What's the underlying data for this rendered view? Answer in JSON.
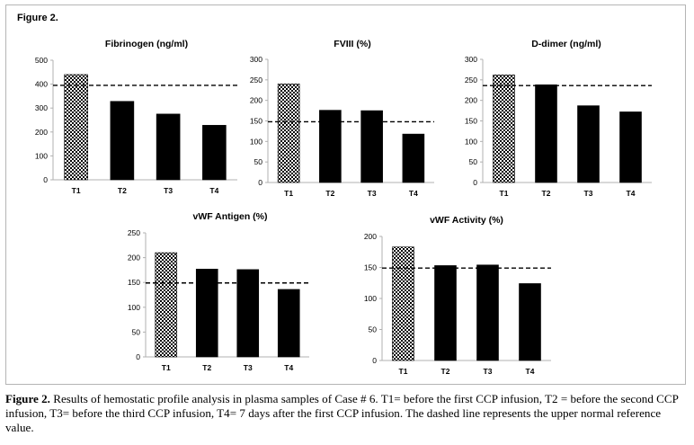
{
  "figure_label": "Figure 2.",
  "caption": {
    "bold": "Figure 2.",
    "text": " Results of hemostatic profile analysis in plasma samples of Case # 6. T1= before the first CCP infusion, T2 = before the second CCP infusion, T3= before the third CCP infusion, T4= 7 days after the first CCP infusion. The dashed line represents the upper normal reference value."
  },
  "colors": {
    "bar": "#000000",
    "checker": "#000000",
    "background": "#ffffff",
    "reference_line": "#000000"
  },
  "chart_data": [
    {
      "type": "bar",
      "title": "Fibrinogen (ng/ml)",
      "categories": [
        "T1",
        "T2",
        "T3",
        "T4"
      ],
      "values": [
        440,
        328,
        275,
        228
      ],
      "ylim": [
        0,
        500
      ],
      "yticks": [
        0,
        100,
        200,
        300,
        400,
        500
      ],
      "reference_line": 395,
      "first_bar_pattern": "checkered"
    },
    {
      "type": "bar",
      "title": "FVIII (%)",
      "categories": [
        "T1",
        "T2",
        "T3",
        "T4"
      ],
      "values": [
        240,
        176,
        175,
        118
      ],
      "ylim": [
        0,
        300
      ],
      "yticks": [
        0,
        50,
        100,
        150,
        200,
        250,
        300
      ],
      "reference_line": 148,
      "first_bar_pattern": "checkered"
    },
    {
      "type": "bar",
      "title": "D-dimer (ng/ml)",
      "categories": [
        "T1",
        "T2",
        "T3",
        "T4"
      ],
      "values": [
        262,
        238,
        187,
        172
      ],
      "ylim": [
        0,
        300
      ],
      "yticks": [
        0,
        50,
        100,
        150,
        200,
        250,
        300
      ],
      "reference_line": 236,
      "first_bar_pattern": "checkered"
    },
    {
      "type": "bar",
      "title": "vWF Antigen (%)",
      "categories": [
        "T1",
        "T2",
        "T3",
        "T4"
      ],
      "values": [
        210,
        177,
        176,
        136
      ],
      "ylim": [
        0,
        250
      ],
      "yticks": [
        0,
        50,
        100,
        150,
        200,
        250
      ],
      "reference_line": 149,
      "first_bar_pattern": "checkered"
    },
    {
      "type": "bar",
      "title": "vWF Activity (%)",
      "categories": [
        "T1",
        "T2",
        "T3",
        "T4"
      ],
      "values": [
        183,
        153,
        154,
        124
      ],
      "ylim": [
        0,
        200
      ],
      "yticks": [
        0,
        50,
        100,
        150,
        200
      ],
      "reference_line": 149,
      "first_bar_pattern": "checkered"
    }
  ]
}
